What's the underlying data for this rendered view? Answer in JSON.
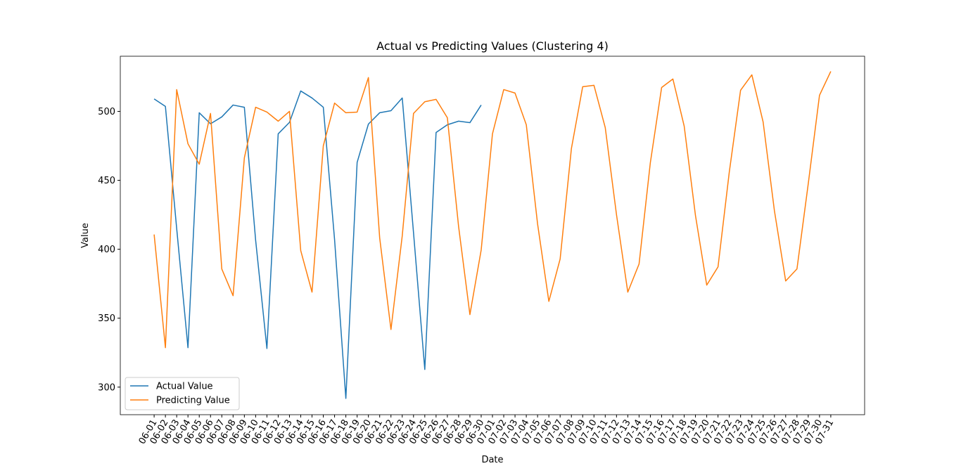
{
  "chart_data": {
    "type": "line",
    "title": "Actual vs Predicting Values (Clustering 4)",
    "x_label": "Date",
    "y_label": "Value",
    "categories": [
      "06-01",
      "06-02",
      "06-03",
      "06-04",
      "06-05",
      "06-06",
      "06-07",
      "06-08",
      "06-09",
      "06-10",
      "06-11",
      "06-12",
      "06-13",
      "06-14",
      "06-15",
      "06-16",
      "06-17",
      "06-18",
      "06-19",
      "06-20",
      "06-21",
      "06-22",
      "06-23",
      "06-24",
      "06-25",
      "06-26",
      "06-27",
      "06-28",
      "06-29",
      "06-30",
      "07-01",
      "07-02",
      "07-03",
      "07-04",
      "07-05",
      "07-06",
      "07-07",
      "07-08",
      "07-09",
      "07-10",
      "07-11",
      "07-12",
      "07-13",
      "07-14",
      "07-15",
      "07-16",
      "07-17",
      "07-18",
      "07-19",
      "07-20",
      "07-21",
      "07-22",
      "07-23",
      "07-24",
      "07-25",
      "07-26",
      "07-27",
      "07-28",
      "07-29",
      "07-30",
      "07-31"
    ],
    "series": [
      {
        "name": "Actual Value",
        "color": "#1f77b4",
        "values": [
          509,
          503.6,
          415,
          328.6,
          499,
          491,
          496,
          504.6,
          503,
          406.6,
          328,
          483.7,
          492,
          514.8,
          509.7,
          503,
          407,
          291.8,
          463,
          490.8,
          499,
          500.5,
          509.7,
          412,
          312.8,
          484.7,
          490.3,
          492.9,
          491.8,
          504.6,
          null,
          null,
          null,
          null,
          null,
          null,
          null,
          null,
          null,
          null,
          null,
          null,
          null,
          null,
          null,
          null,
          null,
          null,
          null,
          null,
          null,
          null,
          null,
          null,
          null,
          null,
          null,
          null,
          null,
          null,
          null
        ]
      },
      {
        "name": "Predicting Value",
        "color": "#ff7f0e",
        "values": [
          410.7,
          328.6,
          515.8,
          476.5,
          461.7,
          498.5,
          385.7,
          366.3,
          466.3,
          503,
          499.5,
          492.9,
          500,
          399,
          368.9,
          475,
          506,
          499,
          499.5,
          524.5,
          408.2,
          341.8,
          409.7,
          498.5,
          507,
          508.7,
          495.4,
          416.3,
          352.6,
          399.5,
          483.7,
          515.8,
          513.3,
          490.3,
          418.4,
          362.2,
          392.9,
          473,
          517.9,
          518.9,
          488.3,
          425,
          368.9,
          389.3,
          462.8,
          517.3,
          523.5,
          489.3,
          424.5,
          374,
          387.2,
          456,
          515.3,
          526.5,
          492.3,
          428,
          377,
          385.7,
          447.4,
          511.7,
          529
        ]
      }
    ],
    "ylim": [
      280,
      540
    ],
    "yticks": [
      300,
      350,
      400,
      450,
      500
    ],
    "legend": "lower left",
    "grid": false
  }
}
